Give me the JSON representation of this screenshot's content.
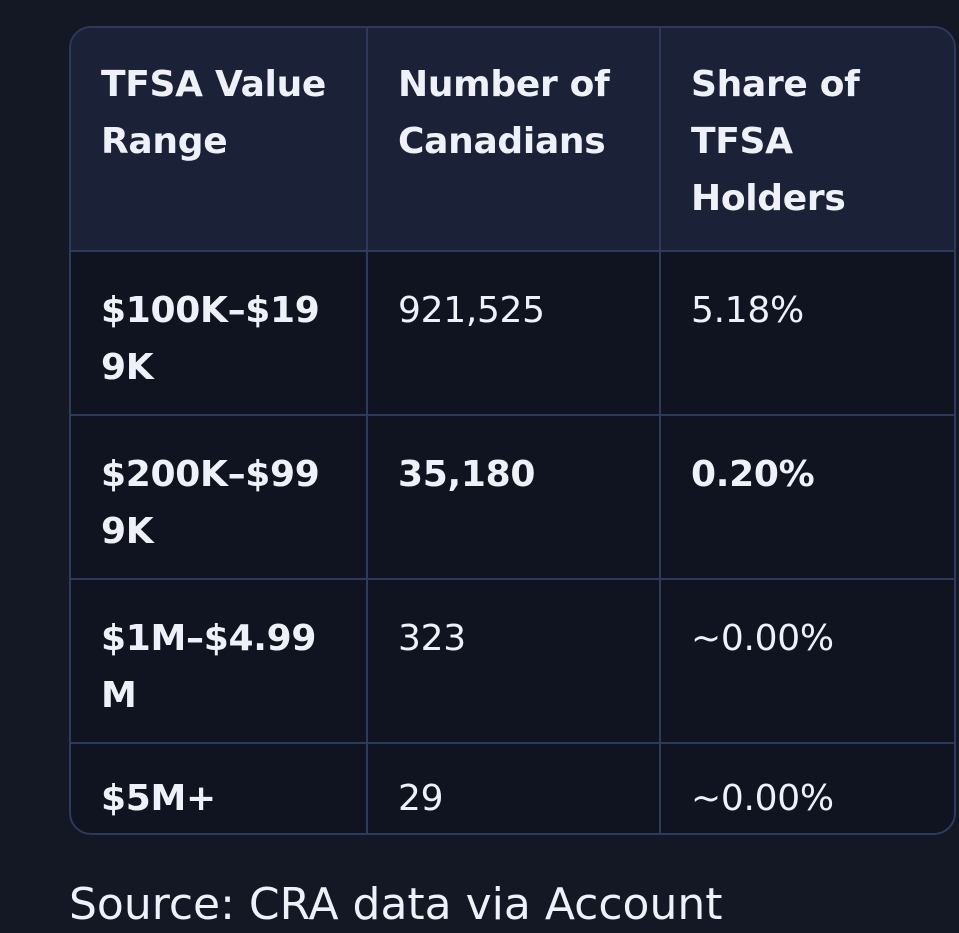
{
  "table": {
    "headers": [
      "TFSA Value Range",
      "Number of Canadians",
      "Share of TFSA Holders"
    ],
    "rows": [
      {
        "range": "$100K–$199K",
        "count": "921,525",
        "share": "5.18%"
      },
      {
        "range": "$200K–$999K",
        "count": "35,180",
        "share": "0.20%"
      },
      {
        "range": "$1M–$4.99M",
        "count": "323",
        "share": "~0.00%"
      },
      {
        "range": "$5M+",
        "count": "29",
        "share": "~0.00%"
      }
    ]
  },
  "footer": {
    "source_text": "Source: CRA data via Account"
  },
  "colors": {
    "background": "#141824",
    "header_bg": "#1b2238",
    "cell_bg": "#101420",
    "border": "#2e3a5c",
    "text": "#eef1f8"
  }
}
